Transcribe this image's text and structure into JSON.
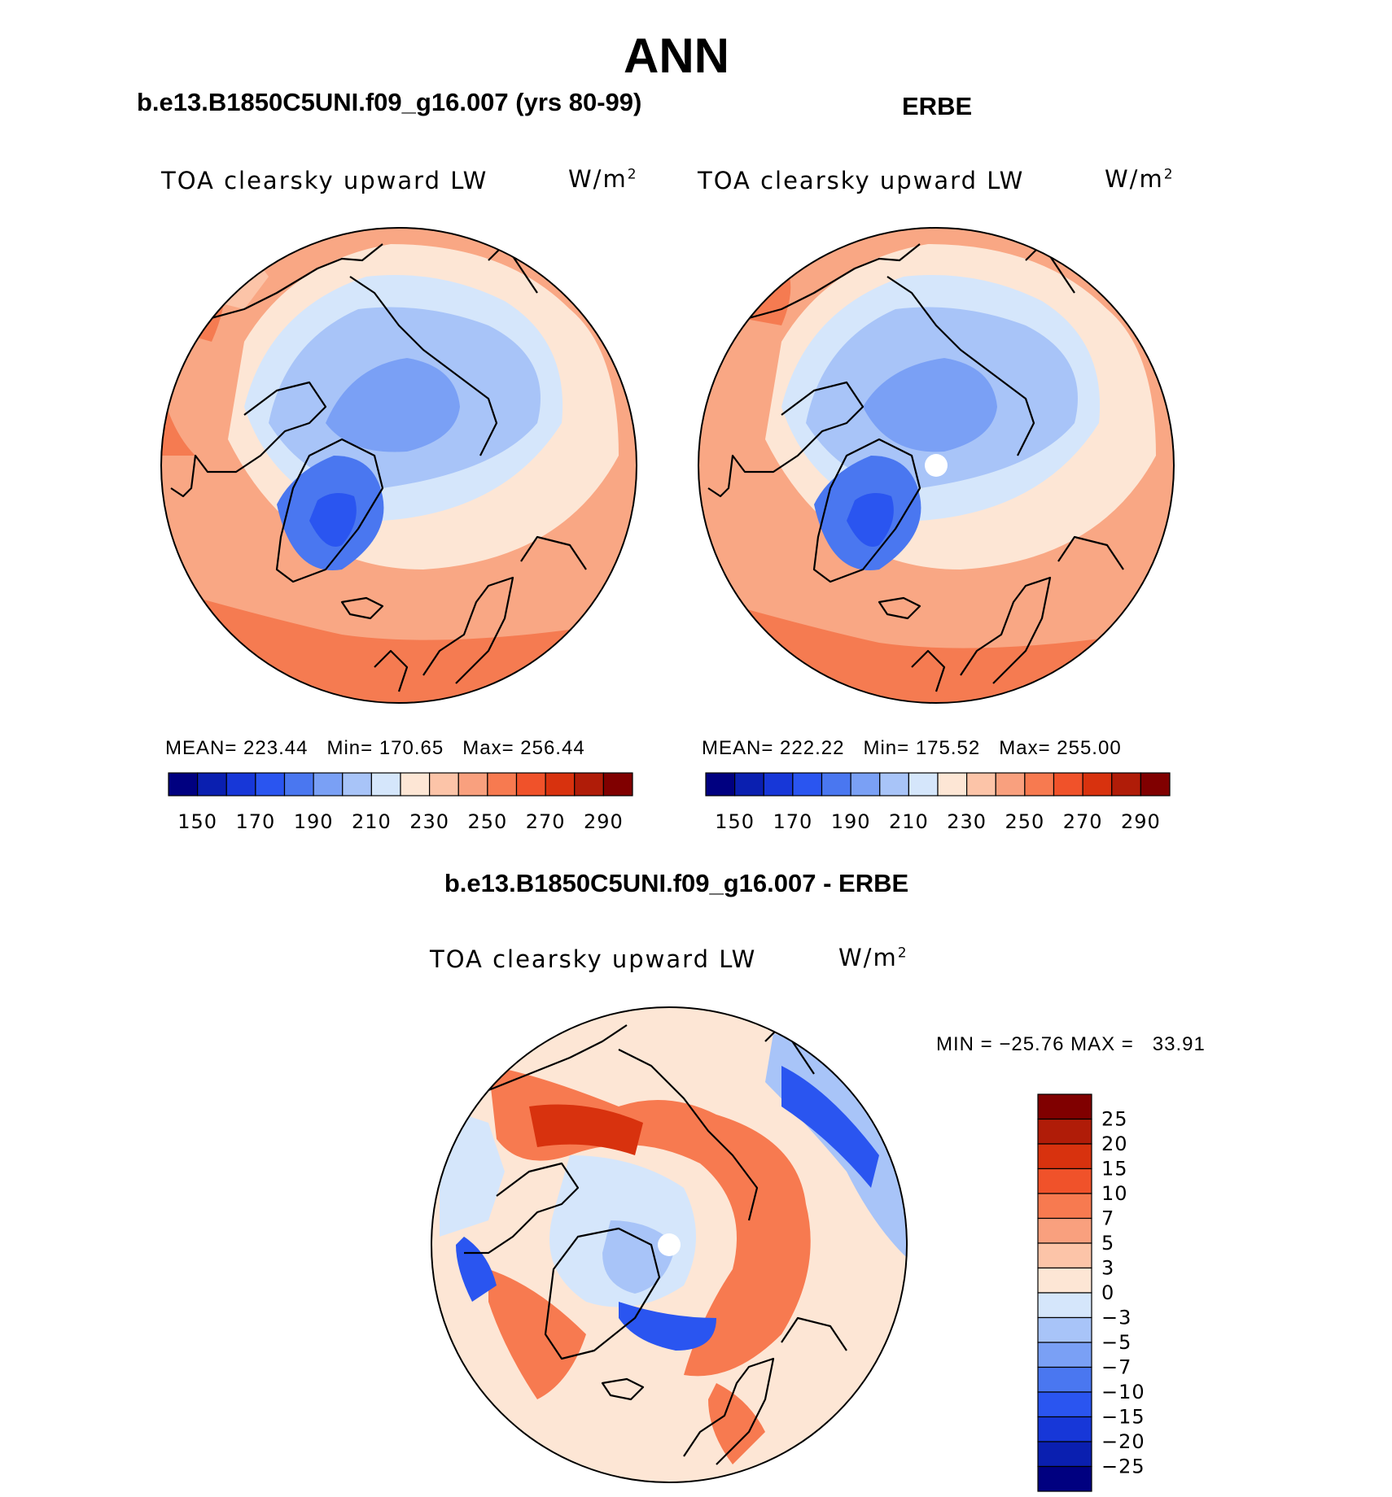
{
  "page": {
    "title": "ANN",
    "model_title": "b.e13.B1850C5UNI.f09_g16.007 (yrs 80-99)",
    "obs_title": "ERBE",
    "diff_title": "b.e13.B1850C5UNI.f09_g16.007 - ERBE"
  },
  "panels": {
    "model": {
      "variable": "TOA clearsky upward LW",
      "units_base": "W/m",
      "units_exp": "2",
      "mean_label": "MEAN=",
      "mean": "223.44",
      "min_label": "Min=",
      "min": "170.65",
      "max_label": "Max=",
      "max": "256.44"
    },
    "obs": {
      "variable": "TOA clearsky upward LW",
      "units_base": "W/m",
      "units_exp": "2",
      "mean_label": "MEAN=",
      "mean": "222.22",
      "min_label": "Min=",
      "min": "175.52",
      "max_label": "Max=",
      "max": "255.00"
    },
    "diff": {
      "variable": "TOA clearsky upward LW",
      "units_base": "W/m",
      "units_exp": "2",
      "minmax_text": "MIN = −25.76 MAX =   33.91"
    }
  },
  "colorbars": {
    "absolute": {
      "colors": [
        "#000080",
        "#0a1fb0",
        "#1737d8",
        "#2a55f0",
        "#4a77f0",
        "#7aa0f5",
        "#a8c4f8",
        "#d5e6fb",
        "#fde6d5",
        "#fcc4a8",
        "#f9a07e",
        "#f77a50",
        "#f0522a",
        "#d8320e",
        "#b01c08",
        "#800000"
      ],
      "tick_labels": [
        "150",
        "170",
        "190",
        "210",
        "230",
        "250",
        "270",
        "290"
      ]
    },
    "difference": {
      "colors": [
        "#000080",
        "#0a1fb0",
        "#1737d8",
        "#2a55f0",
        "#4a77f0",
        "#7aa0f5",
        "#a8c4f8",
        "#d5e6fb",
        "#fde6d5",
        "#fcc4a8",
        "#f9a07e",
        "#f77a50",
        "#f0522a",
        "#d8320e",
        "#b01c08",
        "#800000"
      ],
      "tick_labels": [
        "−25",
        "−20",
        "−15",
        "−10",
        "−7",
        "−5",
        "−3",
        "0",
        "3",
        "5",
        "7",
        "10",
        "15",
        "20",
        "25"
      ]
    }
  }
}
